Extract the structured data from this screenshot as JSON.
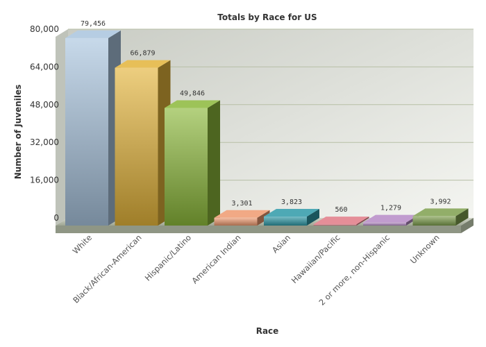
{
  "chart_data": {
    "type": "bar",
    "title": "Totals by Race for US",
    "xlabel": "Race",
    "ylabel": "Number of Juveniles",
    "categories": [
      "White",
      "Black/African-American",
      "Hispanic/Latino",
      "American Indian",
      "Asian",
      "Hawaiian/Pacific",
      "2 or more, non-Hispanic",
      "Unknown"
    ],
    "values": [
      79456,
      66879,
      49846,
      3301,
      3823,
      560,
      1279,
      3992
    ],
    "value_labels": [
      "79,456",
      "66,879",
      "49,846",
      "3,301",
      "3,823",
      "560",
      "1,279",
      "3,992"
    ],
    "yticks": [
      "0",
      "16,000",
      "32,000",
      "48,000",
      "64,000",
      "80,000"
    ],
    "ytick_values": [
      0,
      16000,
      32000,
      48000,
      64000,
      80000
    ],
    "ylim": [
      0,
      80000
    ],
    "grid": true,
    "legend": "none",
    "colors": [
      "#a9c4de",
      "#e3b43a",
      "#8cb83a",
      "#ee9a70",
      "#2f9aa8",
      "#e07a86",
      "#b68bc6",
      "#7fa04e"
    ]
  }
}
